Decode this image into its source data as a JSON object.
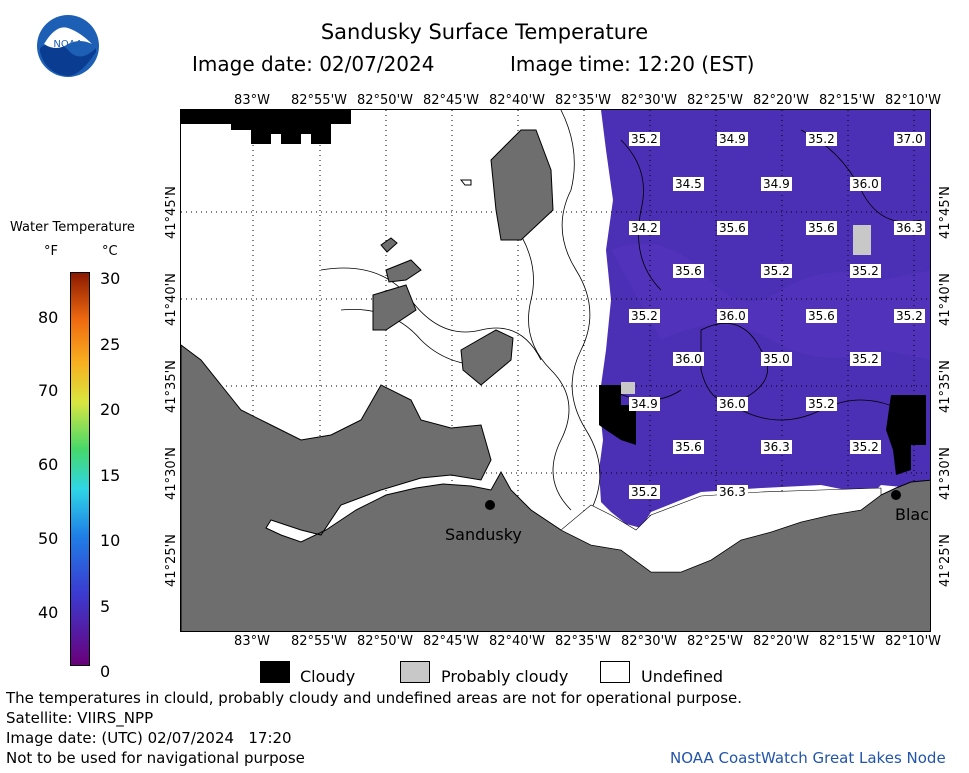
{
  "header": {
    "title": "Sandusky Surface Temperature",
    "image_date": "Image date: 02/07/2024",
    "image_time": "Image time: 12:20 (EST)"
  },
  "logo": {
    "text": "NOAA"
  },
  "scale": {
    "title": "Water Temperature",
    "unit_f": "°F",
    "unit_c": "°C",
    "f_labels": [
      "80",
      "70",
      "60",
      "50",
      "40"
    ],
    "c_labels": [
      "30",
      "25",
      "20",
      "15",
      "10",
      "5",
      "0"
    ]
  },
  "axes": {
    "lon_labels": [
      "83°W",
      "82°55'W",
      "82°50'W",
      "82°45'W",
      "82°40'W",
      "82°35'W",
      "82°30'W",
      "82°25'W",
      "82°20'W",
      "82°15'W",
      "82°10'W"
    ],
    "lat_labels": [
      "41°45'N",
      "41°40'N",
      "41°35'N",
      "41°30'N",
      "41°25'N"
    ]
  },
  "places": {
    "sandusky": "Sandusky",
    "blac": "Blac"
  },
  "temps": [
    {
      "v": "35.2"
    },
    {
      "v": "34.9"
    },
    {
      "v": "35.2"
    },
    {
      "v": "37.0"
    },
    {
      "v": "34.5"
    },
    {
      "v": "34.9"
    },
    {
      "v": "36.0"
    },
    {
      "v": "34.2"
    },
    {
      "v": "35.6"
    },
    {
      "v": "35.6"
    },
    {
      "v": "36.3"
    },
    {
      "v": "35.6"
    },
    {
      "v": "35.2"
    },
    {
      "v": "35.2"
    },
    {
      "v": "35.2"
    },
    {
      "v": "36.0"
    },
    {
      "v": "35.6"
    },
    {
      "v": "35.2"
    },
    {
      "v": "36.0"
    },
    {
      "v": "35.0"
    },
    {
      "v": "35.2"
    },
    {
      "v": "34.9"
    },
    {
      "v": "36.0"
    },
    {
      "v": "35.2"
    },
    {
      "v": "35.6"
    },
    {
      "v": "36.3"
    },
    {
      "v": "35.2"
    },
    {
      "v": "35.2"
    },
    {
      "v": "36.3"
    }
  ],
  "legend": {
    "cloudy": "Cloudy",
    "probably_cloudy": "Probably cloudy",
    "undefined": "Undefined"
  },
  "footer": {
    "disclaimer": "The temperatures in clould, probably cloudy and undefined areas are not for operational purpose.",
    "satellite": "Satellite: VIIRS_NPP",
    "utc_date": "Image date: (UTC) 02/07/2024   17:20",
    "nav_warning": "Not to be used for navigational purpose",
    "credit": "NOAA CoastWatch Great Lakes Node"
  },
  "colors": {
    "water": "#4b2fb4",
    "land": "#6e6e6e",
    "cloud": "#000000",
    "credit": "#2255aa"
  }
}
